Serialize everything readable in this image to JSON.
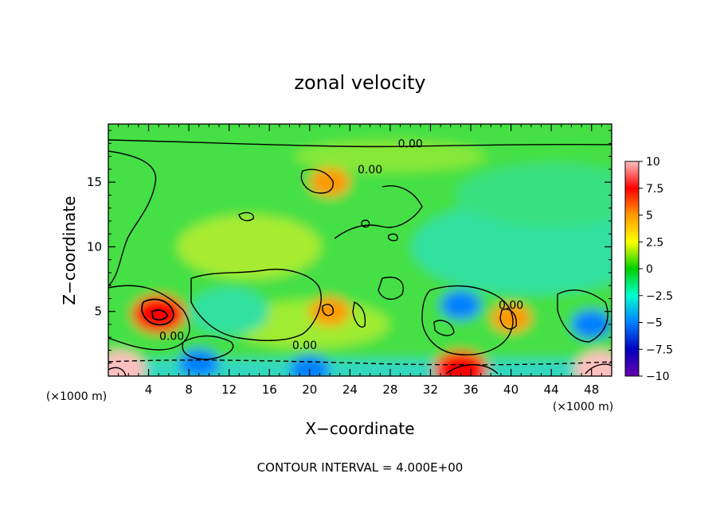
{
  "chart_data": {
    "type": "heatmap",
    "title": "zonal velocity",
    "xlabel": "X−coordinate",
    "ylabel": "Z−coordinate",
    "x_unit_label": "(×1000 m)",
    "xlim": [
      0,
      50
    ],
    "ylim": [
      0,
      19.5
    ],
    "x_ticks": [
      4,
      8,
      12,
      16,
      20,
      24,
      28,
      32,
      36,
      40,
      44,
      48
    ],
    "y_ticks": [
      5,
      10,
      15
    ],
    "colorbar": {
      "range": [
        -10,
        10
      ],
      "tick_values": [
        10,
        7.5,
        5,
        2.5,
        0,
        -2.5,
        -5,
        -7.5,
        -10
      ],
      "tick_labels": [
        "10",
        "7.5",
        "5",
        "2.5",
        "0",
        "−2.5",
        "−5",
        "−7.5",
        "−10"
      ],
      "colors": [
        "#ffc0c0",
        "#ff0000",
        "#ff9900",
        "#ffff00",
        "#00d000",
        "#00ffd0",
        "#0080ff",
        "#0000c0",
        "#6600aa"
      ]
    },
    "contour_labels": [
      "0.00",
      "0.00",
      "0.00",
      "0.00",
      "0.00"
    ],
    "features": [
      {
        "x": 5,
        "z": 4.8,
        "value": 8
      },
      {
        "x": 22,
        "z": 15,
        "value": 4
      },
      {
        "x": 35,
        "z": 0.5,
        "value": 7
      },
      {
        "x": 49,
        "z": 0.5,
        "value": 9
      },
      {
        "x": 1,
        "z": 0.5,
        "value": 9
      },
      {
        "x": 9,
        "z": 1,
        "value": -6
      },
      {
        "x": 20,
        "z": 0.5,
        "value": -6
      },
      {
        "x": 35,
        "z": 5.5,
        "value": -4
      },
      {
        "x": 48,
        "z": 4,
        "value": -5
      },
      {
        "x": 40,
        "z": 4.5,
        "value": 4
      },
      {
        "x": 22,
        "z": 5,
        "value": 5
      }
    ],
    "footer": "CONTOUR INTERVAL = 4.000E+00"
  }
}
